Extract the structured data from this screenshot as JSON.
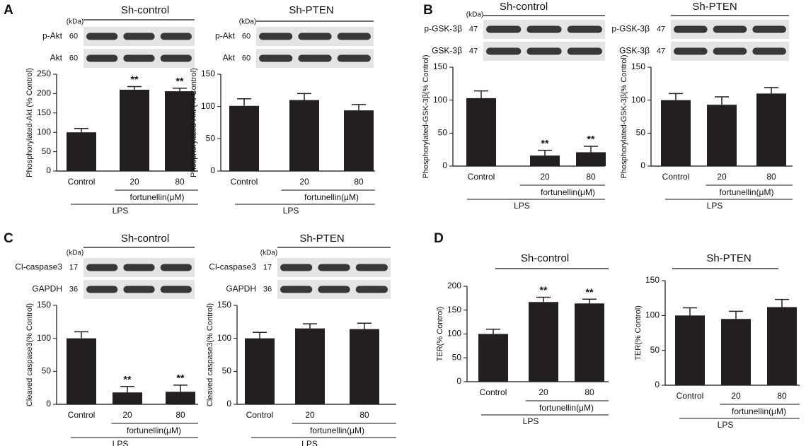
{
  "chart_data": [
    {
      "type": "bar",
      "panel": "A",
      "title": "Sh-control",
      "ylabel": "Phosphorylated-Akt (% Control)",
      "categories": [
        "Control",
        "20",
        "80"
      ],
      "values": [
        100,
        210,
        206
      ],
      "errors": [
        10,
        8,
        8
      ],
      "annotations": [
        null,
        "**",
        "**"
      ],
      "group_label": "fortunellin(μM)",
      "treatment_label": "LPS",
      "color": "#231f20",
      "ylim": [
        0,
        250
      ],
      "yticks": [
        0,
        50,
        100,
        150,
        200,
        250
      ],
      "blot_unit": "(kDa)",
      "blots": [
        {
          "label": "p-Akt",
          "kda": 60
        },
        {
          "label": "Akt",
          "kda": 60
        }
      ]
    },
    {
      "type": "bar",
      "title": "Sh-PTEN",
      "ylabel": "Phosphorylated-Akt (% Control)",
      "categories": [
        "Control",
        "20",
        "80"
      ],
      "values": [
        101,
        110,
        94
      ],
      "errors": [
        11,
        10,
        9
      ],
      "group_label": "fortunellin(μM)",
      "treatment_label": "LPS",
      "color": "#231f20",
      "ylim": [
        0,
        150
      ],
      "yticks": [
        0,
        50,
        100,
        150
      ],
      "blot_unit": "(kDa)",
      "blots": [
        {
          "label": "p-Akt",
          "kda": 60
        },
        {
          "label": "Akt",
          "kda": 60
        }
      ]
    },
    {
      "type": "bar",
      "panel": "B",
      "title": "Sh-control",
      "ylabel": "Phosphorylated-GSK-3β(% Control)",
      "categories": [
        "Control",
        "20",
        "80"
      ],
      "values": [
        103,
        16,
        21
      ],
      "errors": [
        11,
        8,
        9
      ],
      "annotations": [
        null,
        "**",
        "**"
      ],
      "group_label": "fortunellin(μM)",
      "treatment_label": "LPS",
      "color": "#231f20",
      "ylim": [
        0,
        150
      ],
      "yticks": [
        0,
        50,
        100,
        150
      ],
      "blot_unit": "(kDa)",
      "blots": [
        {
          "label": "p-GSK-3β",
          "kda": 47
        },
        {
          "label": "GSK-3β",
          "kda": 47
        }
      ]
    },
    {
      "type": "bar",
      "title": "Sh-PTEN",
      "ylabel": "Phosphorylated-GSK-3β(% Control)",
      "categories": [
        "Control",
        "20",
        "80"
      ],
      "values": [
        100,
        93,
        110
      ],
      "errors": [
        10,
        12,
        9
      ],
      "group_label": "fortunellin(μM)",
      "treatment_label": "LPS",
      "color": "#231f20",
      "ylim": [
        0,
        150
      ],
      "yticks": [
        0,
        50,
        100,
        150
      ],
      "blots": [
        {
          "label": "p-GSK-3β",
          "kda": 47
        },
        {
          "label": "GSK-3β",
          "kda": 47
        }
      ]
    },
    {
      "type": "bar",
      "panel": "C",
      "title": "Sh-control",
      "ylabel": "Cleaved caspase3(% Control)",
      "categories": [
        "Control",
        "20",
        "80"
      ],
      "values": [
        100,
        18,
        19
      ],
      "errors": [
        10,
        9,
        10
      ],
      "annotations": [
        null,
        "**",
        "**"
      ],
      "group_label": "fortunellin(μM)",
      "treatment_label": "LPS",
      "color": "#231f20",
      "ylim": [
        0,
        150
      ],
      "yticks": [
        0,
        50,
        100,
        150
      ],
      "blot_unit": "(kDa)",
      "blots": [
        {
          "label": "Cl-caspase3",
          "kda": 17
        },
        {
          "label": "GAPDH",
          "kda": 36
        }
      ]
    },
    {
      "type": "bar",
      "title": "Sh-PTEN",
      "ylabel": "Cleaved caspase3(% Control)",
      "categories": [
        "Control",
        "20",
        "80"
      ],
      "values": [
        100,
        115,
        114
      ],
      "errors": [
        9,
        7,
        9
      ],
      "group_label": "fortunellin(μM)",
      "treatment_label": "LPS",
      "color": "#231f20",
      "ylim": [
        0,
        150
      ],
      "yticks": [
        0,
        50,
        100,
        150
      ],
      "blot_unit": "(kDa)",
      "blots": [
        {
          "label": "Cl-caspase3",
          "kda": 17
        },
        {
          "label": "GAPDH",
          "kda": 36
        }
      ]
    },
    {
      "type": "bar",
      "panel": "D",
      "title": "Sh-control",
      "ylabel": "TER(% Control)",
      "categories": [
        "Control",
        "20",
        "80"
      ],
      "values": [
        100,
        167,
        164
      ],
      "errors": [
        10,
        10,
        9
      ],
      "annotations": [
        null,
        "**",
        "**"
      ],
      "group_label": "fortunellin(μM)",
      "treatment_label": "LPS",
      "color": "#231f20",
      "ylim": [
        0,
        200
      ],
      "yticks": [
        0,
        50,
        100,
        150,
        200
      ]
    },
    {
      "type": "bar",
      "title": "Sh-PTEN",
      "ylabel": "TER(% Control)",
      "categories": [
        "Control",
        "20",
        "80"
      ],
      "values": [
        100,
        95,
        112
      ],
      "errors": [
        11,
        11,
        11
      ],
      "group_label": "fortunellin(μM)",
      "treatment_label": "LPS",
      "color": "#231f20",
      "ylim": [
        0,
        150
      ],
      "yticks": [
        0,
        50,
        100,
        150
      ]
    }
  ]
}
